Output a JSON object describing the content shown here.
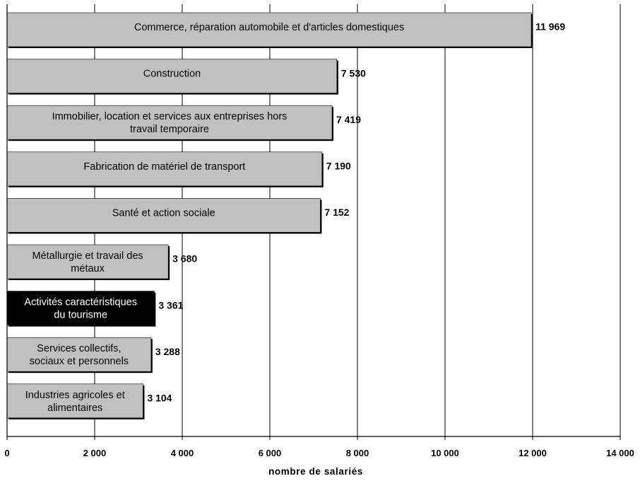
{
  "chart_data": {
    "type": "bar",
    "orientation": "horizontal",
    "categories": [
      "Commerce, réparation automobile et d'articles domestiques",
      "Construction",
      "Immobilier, location et services aux entreprises hors travail temporaire",
      "Fabrication de matériel de transport",
      "Santé et action sociale",
      "Métallurgie et travail des métaux",
      "Activités caractéristiques du tourisme",
      "Services collectifs, sociaux et personnels",
      "Industries agricoles et alimentaires"
    ],
    "label_lines": [
      [
        "Commerce, réparation automobile et d'articles domestiques"
      ],
      [
        "Construction"
      ],
      [
        "Immobilier, location et services aux entreprises hors",
        "travail temporaire"
      ],
      [
        "Fabrication de matériel de transport"
      ],
      [
        "Santé et action sociale"
      ],
      [
        "Métallurgie et travail des",
        "métaux"
      ],
      [
        "Activités caractéristiques",
        "du tourisme"
      ],
      [
        "Services collectifs,",
        "sociaux et personnels"
      ],
      [
        "Industries agricoles et",
        "alimentaires"
      ]
    ],
    "values": [
      11969,
      7530,
      7419,
      7190,
      7152,
      3680,
      3361,
      3288,
      3104
    ],
    "value_labels": [
      "11 969",
      "7 530",
      "7 419",
      "7 190",
      "7 152",
      "3 680",
      "3 361",
      "3 288",
      "3 104"
    ],
    "highlight_index": 6,
    "xlim": [
      0,
      14000
    ],
    "xticks": [
      0,
      2000,
      4000,
      6000,
      8000,
      10000,
      12000,
      14000
    ],
    "xtick_labels": [
      "0",
      "2 000",
      "4 000",
      "6 000",
      "8 000",
      "10 000",
      "12 000",
      "14 000"
    ],
    "xlabel": "nombre de salariés",
    "grid": true,
    "colors": {
      "bar": "#c0c0c0",
      "highlight_bar": "#000000",
      "grid": "#000000",
      "shadow": "#000000"
    }
  }
}
